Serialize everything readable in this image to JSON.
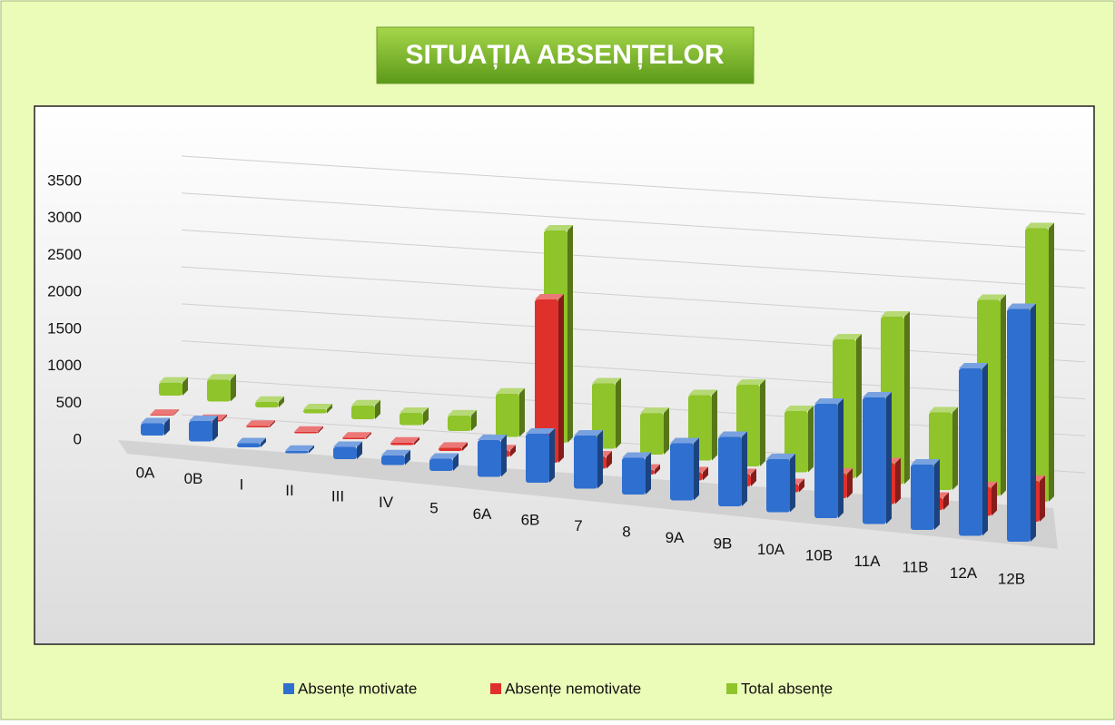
{
  "chart_data": {
    "type": "bar3d",
    "title": "SITUAȚIA ABSENȚELOR",
    "categories": [
      "0A",
      "0B",
      "I",
      "II",
      "III",
      "IV",
      "5",
      "6A",
      "6B",
      "7",
      "8",
      "9A",
      "9B",
      "10A",
      "10B",
      "11A",
      "11B",
      "12A",
      "12B"
    ],
    "series": [
      {
        "name": "Absențe motivate",
        "color": "#2f6fd0",
        "values": [
          150,
          250,
          50,
          30,
          150,
          120,
          150,
          450,
          600,
          650,
          450,
          700,
          850,
          650,
          1400,
          1550,
          800,
          2050,
          2850
        ]
      },
      {
        "name": "Absențe nemotivate",
        "color": "#e0302c",
        "values": [
          10,
          20,
          20,
          20,
          20,
          30,
          40,
          80,
          2000,
          150,
          60,
          100,
          150,
          100,
          300,
          500,
          150,
          350,
          500
        ]
      },
      {
        "name": "Total absențe",
        "color": "#8fc42a",
        "values": [
          160,
          270,
          70,
          50,
          170,
          150,
          190,
          530,
          2600,
          800,
          510,
          800,
          1000,
          750,
          1700,
          2050,
          950,
          2400,
          3350
        ]
      }
    ],
    "ylim": [
      0,
      3500
    ],
    "yticks": [
      0,
      500,
      1000,
      1500,
      2000,
      2500,
      3000,
      3500
    ],
    "grid": true
  }
}
